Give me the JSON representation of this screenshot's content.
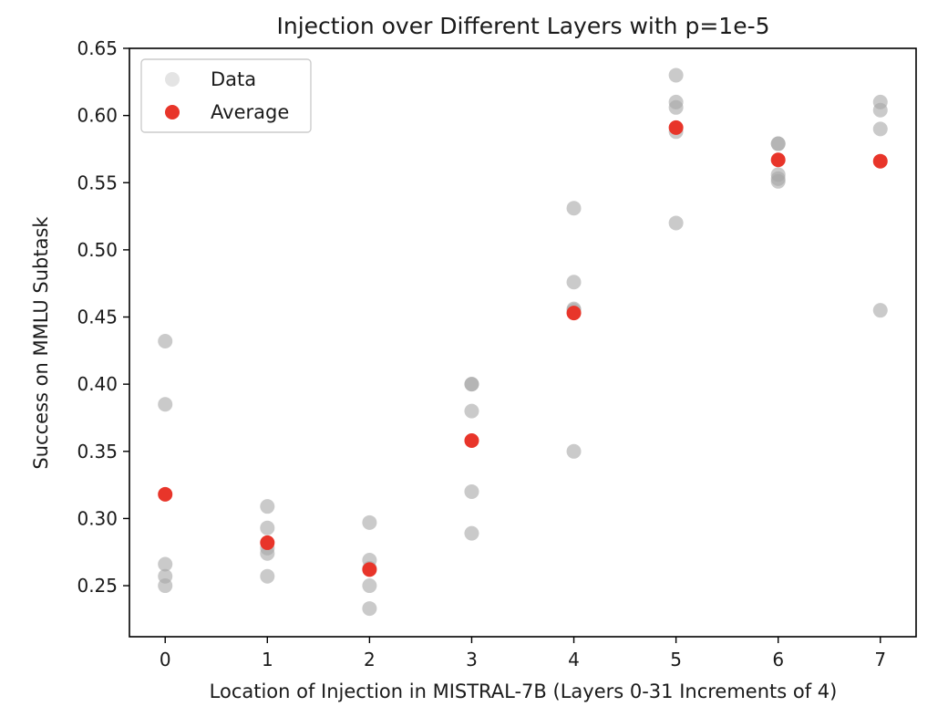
{
  "chart_data": {
    "type": "scatter",
    "title": "Injection over Different Layers with p=1e-5",
    "xlabel": "Location of Injection in MISTRAL-7B (Layers 0-31 Increments of 4)",
    "ylabel": "Success on MMLU Subtask",
    "xlim": [
      -0.35,
      7.35
    ],
    "ylim": [
      0.212,
      0.65
    ],
    "xticks": [
      "0",
      "1",
      "2",
      "3",
      "4",
      "5",
      "6",
      "7"
    ],
    "yticks": [
      "0.25",
      "0.30",
      "0.35",
      "0.40",
      "0.45",
      "0.50",
      "0.55",
      "0.60",
      "0.65"
    ],
    "legend": {
      "placement": "upper-left",
      "entries": [
        "Data",
        "Average"
      ]
    },
    "series": [
      {
        "name": "Data",
        "color": "#a6a6a6",
        "points": [
          [
            0,
            0.432
          ],
          [
            0,
            0.385
          ],
          [
            0,
            0.266
          ],
          [
            0,
            0.257
          ],
          [
            0,
            0.25
          ],
          [
            1,
            0.309
          ],
          [
            1,
            0.293
          ],
          [
            1,
            0.278
          ],
          [
            1,
            0.274
          ],
          [
            1,
            0.257
          ],
          [
            2,
            0.297
          ],
          [
            2,
            0.269
          ],
          [
            2,
            0.263
          ],
          [
            2,
            0.25
          ],
          [
            2,
            0.233
          ],
          [
            3,
            0.4
          ],
          [
            3,
            0.4
          ],
          [
            3,
            0.38
          ],
          [
            3,
            0.32
          ],
          [
            3,
            0.289
          ],
          [
            4,
            0.531
          ],
          [
            4,
            0.476
          ],
          [
            4,
            0.456
          ],
          [
            4,
            0.455
          ],
          [
            4,
            0.35
          ],
          [
            5,
            0.63
          ],
          [
            5,
            0.61
          ],
          [
            5,
            0.606
          ],
          [
            5,
            0.588
          ],
          [
            5,
            0.52
          ],
          [
            6,
            0.579
          ],
          [
            6,
            0.579
          ],
          [
            6,
            0.556
          ],
          [
            6,
            0.553
          ],
          [
            6,
            0.551
          ],
          [
            7,
            0.61
          ],
          [
            7,
            0.604
          ],
          [
            7,
            0.59
          ],
          [
            7,
            0.455
          ]
        ]
      },
      {
        "name": "Average",
        "color": "#e8352a",
        "points": [
          [
            0,
            0.318
          ],
          [
            1,
            0.282
          ],
          [
            2,
            0.262
          ],
          [
            3,
            0.358
          ],
          [
            4,
            0.453
          ],
          [
            5,
            0.591
          ],
          [
            6,
            0.567
          ],
          [
            7,
            0.566
          ]
        ]
      }
    ]
  }
}
